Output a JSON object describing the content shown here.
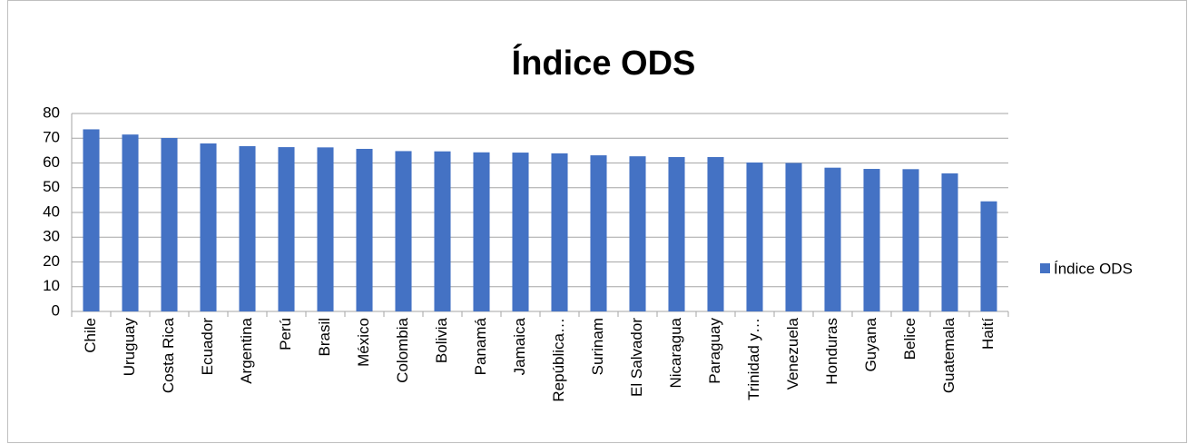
{
  "chart_data": {
    "type": "bar",
    "title": "Índice ODS",
    "categories": [
      "Chile",
      "Uruguay",
      "Costa Rica",
      "Ecuador",
      "Argentina",
      "Perú",
      "Brasil",
      "México",
      "Colombia",
      "Bolivia",
      "Panamá",
      "Jamaica",
      "República…",
      "Surinam",
      "El Salvador",
      "Nicaragua",
      "Paraguay",
      "Trinidad y…",
      "Venezuela",
      "Honduras",
      "Guyana",
      "Belice",
      "Guatemala",
      "Haití"
    ],
    "series": [
      {
        "name": "Índice ODS",
        "color": "#4472c4",
        "values": [
          73.6,
          71.5,
          70.1,
          67.9,
          66.8,
          66.4,
          66.3,
          65.7,
          64.8,
          64.7,
          64.3,
          64.2,
          63.9,
          63.1,
          62.7,
          62.4,
          62.4,
          60.2,
          60.0,
          58.1,
          57.6,
          57.5,
          55.8,
          44.5
        ]
      }
    ],
    "ylim": [
      0,
      80
    ],
    "yticks": [
      0,
      10,
      20,
      30,
      40,
      50,
      60,
      70,
      80
    ],
    "grid": true,
    "legend": "right"
  }
}
